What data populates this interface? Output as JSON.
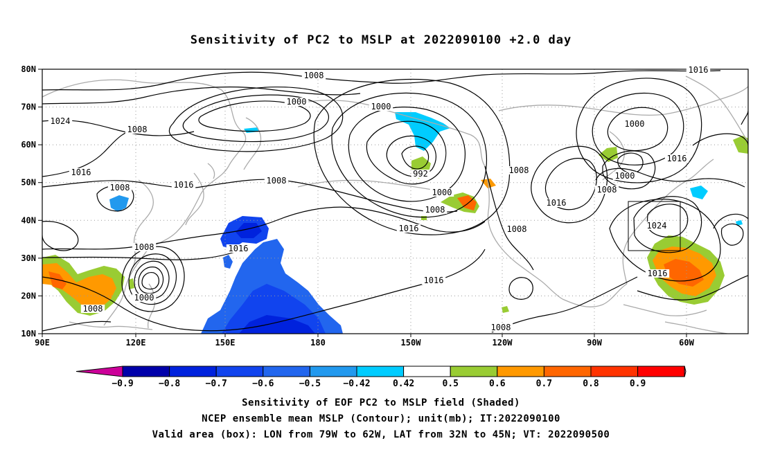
{
  "title": "Sensitivity of PC2 to MSLP at 2022090100 +2.0 day",
  "axes": {
    "lat_ticks": [
      "80N",
      "70N",
      "60N",
      "50N",
      "40N",
      "30N",
      "20N",
      "10N"
    ],
    "lon_ticks": [
      "90E",
      "120E",
      "150E",
      "180",
      "150W",
      "120W",
      "90W",
      "60W"
    ]
  },
  "contour_labels": [
    {
      "text": "1008"
    },
    {
      "text": "1000"
    },
    {
      "text": "1000"
    },
    {
      "text": "1008"
    },
    {
      "text": "1024"
    },
    {
      "text": "1008"
    },
    {
      "text": "1016"
    },
    {
      "text": "1008"
    },
    {
      "text": "1016"
    },
    {
      "text": "1008"
    },
    {
      "text": "992"
    },
    {
      "text": "1000"
    },
    {
      "text": "1008"
    },
    {
      "text": "1008"
    },
    {
      "text": "1016"
    },
    {
      "text": "1016"
    },
    {
      "text": "1000"
    },
    {
      "text": "1008"
    },
    {
      "text": "1016"
    },
    {
      "text": "1000"
    },
    {
      "text": "1016"
    },
    {
      "text": "1008"
    },
    {
      "text": "1024"
    },
    {
      "text": "1016"
    },
    {
      "text": "1016"
    },
    {
      "text": "1008"
    },
    {
      "text": "1016"
    },
    {
      "text": "1008"
    },
    {
      "text": "1000"
    },
    {
      "text": "1008"
    },
    {
      "text": "1016"
    },
    {
      "text": "1008"
    }
  ],
  "colorbar": {
    "labels": [
      "-0.9",
      "-0.8",
      "-0.7",
      "-0.6",
      "-0.5",
      "-0.42",
      "0.42",
      "0.5",
      "0.6",
      "0.7",
      "0.8",
      "0.9"
    ],
    "colors": [
      "#cc0099",
      "#0000aa",
      "#0022dd",
      "#1144ee",
      "#2266ee",
      "#2299ee",
      "#00ccff",
      "#ffffff",
      "#99cc33",
      "#ff9900",
      "#ff6600",
      "#ff3300",
      "#ff0000",
      "#ff99cc"
    ]
  },
  "captions": [
    "Sensitivity of EOF PC2 to MSLP field (Shaded)",
    "NCEP ensemble mean MSLP (Contour); unit(mb); IT:2022090100",
    "Valid area (box): LON from 79W to 62W, LAT from 32N to 45N; VT: 2022090500"
  ]
}
